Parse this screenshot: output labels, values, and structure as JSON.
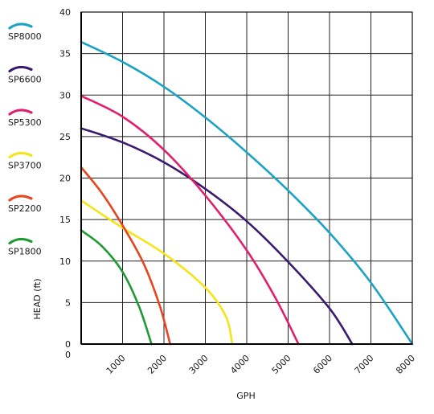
{
  "chart_data": {
    "type": "line",
    "title": "",
    "xlabel": "GPH",
    "ylabel": "HEAD (ft)",
    "xlim": [
      0,
      8000
    ],
    "ylim": [
      0,
      40
    ],
    "x_ticks": [
      "0",
      "1000",
      "2000",
      "3000",
      "4000",
      "5000",
      "6000",
      "7000",
      "8000"
    ],
    "y_ticks": [
      "0",
      "5",
      "10",
      "15",
      "20",
      "25",
      "30",
      "35",
      "40"
    ],
    "grid": true,
    "legend_position": "left",
    "series": [
      {
        "name": "SP8000",
        "color": "#1aa3c4",
        "points": [
          [
            0,
            36.4
          ],
          [
            1000,
            34.0
          ],
          [
            2000,
            31.0
          ],
          [
            3000,
            27.3
          ],
          [
            4000,
            23.1
          ],
          [
            5000,
            18.5
          ],
          [
            6000,
            13.4
          ],
          [
            7000,
            7.4
          ],
          [
            8000,
            0
          ]
        ]
      },
      {
        "name": "SP6600",
        "color": "#3a1a6e",
        "points": [
          [
            0,
            26.0
          ],
          [
            1000,
            24.3
          ],
          [
            2000,
            21.9
          ],
          [
            3000,
            18.7
          ],
          [
            4000,
            14.8
          ],
          [
            5000,
            9.9
          ],
          [
            6000,
            4.3
          ],
          [
            6550,
            0
          ]
        ]
      },
      {
        "name": "SP5300",
        "color": "#e0206e",
        "points": [
          [
            0,
            29.9
          ],
          [
            1000,
            27.4
          ],
          [
            2000,
            23.4
          ],
          [
            3000,
            17.9
          ],
          [
            4000,
            11.3
          ],
          [
            4700,
            5.5
          ],
          [
            5250,
            0
          ]
        ]
      },
      {
        "name": "SP3700",
        "color": "#f4e418",
        "points": [
          [
            0,
            17.3
          ],
          [
            1000,
            14.0
          ],
          [
            2000,
            10.9
          ],
          [
            3000,
            6.8
          ],
          [
            3500,
            3.3
          ],
          [
            3650,
            0
          ]
        ]
      },
      {
        "name": "SP2200",
        "color": "#e8441e",
        "points": [
          [
            0,
            21.3
          ],
          [
            500,
            18.2
          ],
          [
            1000,
            14.3
          ],
          [
            1500,
            9.8
          ],
          [
            1900,
            4.6
          ],
          [
            2150,
            0
          ]
        ]
      },
      {
        "name": "SP1800",
        "color": "#1f9a32",
        "points": [
          [
            0,
            13.7
          ],
          [
            500,
            11.8
          ],
          [
            1000,
            8.7
          ],
          [
            1400,
            4.5
          ],
          [
            1700,
            0
          ]
        ]
      }
    ]
  }
}
